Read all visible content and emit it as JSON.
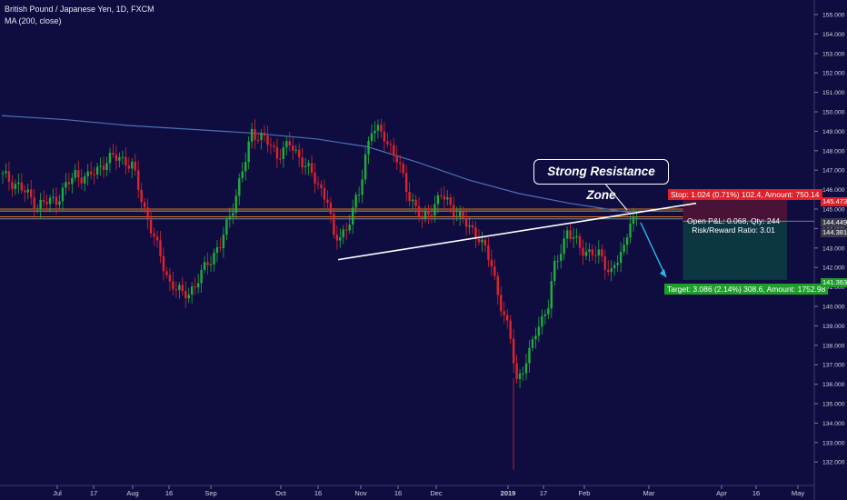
{
  "header": {
    "symbol": "British Pound / Japanese Yen, 1D, FXCM",
    "indicator": "MA (200, close)"
  },
  "annotation": {
    "callout": "Strong Resistance Zone"
  },
  "position": {
    "stop_label": "Stop: 1.024 (0.71%) 102.4, Amount: 750.14",
    "pnl_line": "Open P&L: 0.068, Qty: 244",
    "ratio_line": "Risk/Reward Ratio: 3.01",
    "target_label": "Target: 3.086 (2.14%) 308.6, Amount: 1752.98",
    "stop_price": "145.473",
    "current_price": "144.449",
    "entry_price": "144.381",
    "target_price": "141.363"
  },
  "chart_data": {
    "type": "candlestick",
    "title": "British Pound / Japanese Yen, 1D, FXCM",
    "y_ticks": [
      "155.000",
      "154.000",
      "153.000",
      "152.000",
      "151.000",
      "150.000",
      "149.000",
      "148.000",
      "147.000",
      "146.000",
      "145.000",
      "144.000",
      "143.000",
      "142.000",
      "141.000",
      "140.000",
      "139.000",
      "138.000",
      "137.000",
      "136.000",
      "135.000",
      "134.000",
      "133.000",
      "132.000"
    ],
    "x_ticks": [
      "Jul",
      "17",
      "Aug",
      "16",
      "Sep",
      "Oct",
      "16",
      "Nov",
      "16",
      "Dec",
      "2019",
      "17",
      "Feb",
      "Mar",
      "Apr",
      "16",
      "May"
    ],
    "ylim": [
      131.5,
      155.7
    ],
    "colors": {
      "background": "#0f0d40",
      "up": "#1fae3b",
      "down": "#e0232c",
      "ma": "#4a72b5",
      "trendline": "#ffffff",
      "arrow": "#29b8e8"
    },
    "price_path": [
      [
        0,
        146.8
      ],
      [
        3,
        146.2
      ],
      [
        6,
        145.2
      ],
      [
        9,
        145.5
      ],
      [
        12,
        146.8
      ],
      [
        14,
        146.6
      ],
      [
        17,
        147.5
      ],
      [
        19,
        147.7
      ],
      [
        21,
        147.2
      ],
      [
        23,
        145.0
      ],
      [
        25,
        143.0
      ],
      [
        27,
        141.2
      ],
      [
        29,
        140.6
      ],
      [
        31,
        141.0
      ],
      [
        33,
        142.3
      ],
      [
        35,
        143.1
      ],
      [
        37,
        145.2
      ],
      [
        39,
        147.5
      ],
      [
        40,
        149.0
      ],
      [
        42,
        148.6
      ],
      [
        44,
        147.8
      ],
      [
        46,
        148.3
      ],
      [
        48,
        147.5
      ],
      [
        50,
        146.5
      ],
      [
        52,
        145.5
      ],
      [
        53,
        143.4
      ],
      [
        55,
        144.0
      ],
      [
        57,
        145.8
      ],
      [
        58,
        147.8
      ],
      [
        59,
        149.1
      ],
      [
        61,
        148.8
      ],
      [
        63,
        147.5
      ],
      [
        65,
        145.7
      ],
      [
        67,
        144.4
      ],
      [
        70,
        145.7
      ],
      [
        72,
        145.0
      ],
      [
        74,
        144.2
      ],
      [
        76,
        143.6
      ],
      [
        78,
        142.1
      ],
      [
        79,
        140.7
      ],
      [
        80,
        139.5
      ],
      [
        81,
        138.3
      ],
      [
        82,
        136.2
      ],
      [
        84,
        137.5
      ],
      [
        85,
        138.7
      ],
      [
        87,
        140.1
      ],
      [
        88,
        142.0
      ],
      [
        90,
        143.9
      ],
      [
        92,
        143.0
      ],
      [
        95,
        142.6
      ],
      [
        97,
        141.8
      ],
      [
        99,
        142.9
      ],
      [
        100,
        144.6
      ],
      [
        101,
        144.4
      ]
    ],
    "ma_200": [
      [
        0,
        149.8
      ],
      [
        10,
        149.6
      ],
      [
        20,
        149.3
      ],
      [
        30,
        149.1
      ],
      [
        40,
        148.9
      ],
      [
        50,
        148.6
      ],
      [
        58,
        148.2
      ],
      [
        66,
        147.4
      ],
      [
        74,
        146.5
      ],
      [
        82,
        145.8
      ],
      [
        90,
        145.3
      ],
      [
        100,
        144.8
      ]
    ],
    "resistance_levels": [
      145.0,
      144.9,
      144.6,
      144.5
    ],
    "trendline": {
      "from": [
        49,
        142.4
      ],
      "to": [
        100,
        145.3
      ]
    },
    "projection": {
      "from": [
        101,
        144.3
      ],
      "to": [
        108,
        141.5
      ]
    },
    "long_position": {
      "start": 108,
      "end": 126,
      "stop": 145.473,
      "entry": 144.381,
      "target": 141.363
    }
  }
}
